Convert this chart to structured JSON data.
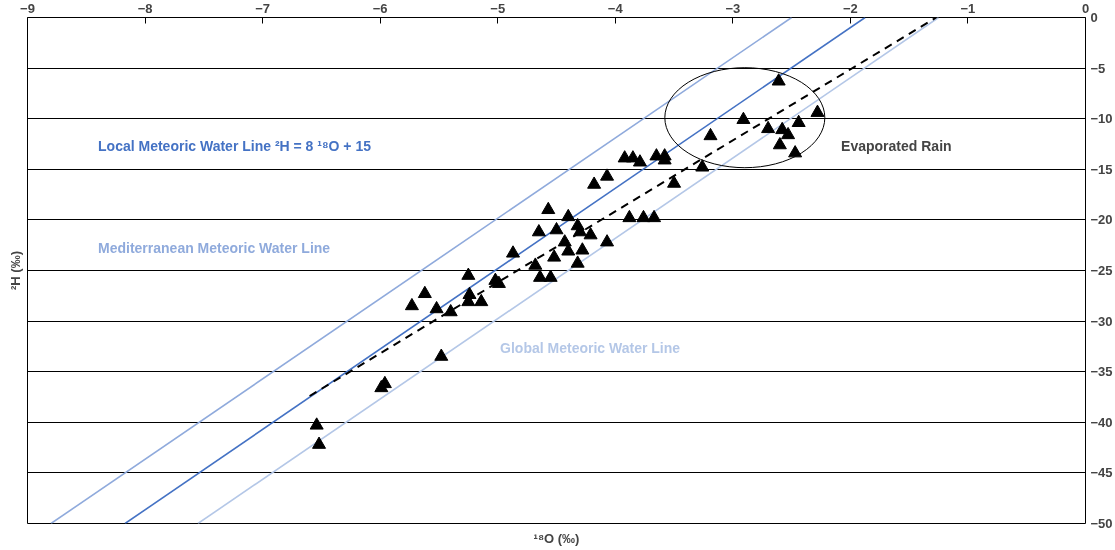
{
  "chart_data": {
    "type": "scatter",
    "xlabel": "¹⁸O (‰)",
    "ylabel": "²H (‰)",
    "xlim": [
      -9,
      0
    ],
    "xticks": [
      -9,
      -8,
      -7,
      -6,
      -5,
      -4,
      -3,
      -2,
      -1,
      0
    ],
    "ylim": [
      -50,
      0
    ],
    "yticks": [
      -50,
      -45,
      -40,
      -35,
      -30,
      -25,
      -20,
      -15,
      -10,
      -5,
      0
    ],
    "grid": "y",
    "legend": false,
    "annotations": [
      "Evaporated Rain"
    ],
    "series": [
      {
        "type": "line",
        "name": "Local Meteoric Water Line    ²H = 8  ¹⁸O + 15",
        "color": "#4472c4",
        "line_style": "solid",
        "x": [
          -8.17,
          -1.875
        ],
        "values": [
          -50,
          0
        ]
      },
      {
        "type": "line",
        "name": "Mediterranean Meteoric Water Line",
        "color": "#8faadc",
        "line_style": "solid",
        "x": [
          -8.8,
          -2.5
        ],
        "values": [
          -50,
          0
        ]
      },
      {
        "type": "line",
        "name": "Global Meteoric Water Line",
        "color": "#b4c7e7",
        "line_style": "solid",
        "x": [
          -7.55,
          -1.25
        ],
        "values": [
          -50,
          0
        ]
      },
      {
        "type": "line",
        "color": "#000000",
        "line_style": "dashed",
        "x": [
          -6.6,
          -1.27
        ],
        "values": [
          -37.4,
          0
        ]
      },
      {
        "color": "#000000",
        "marker": "triangle",
        "x": [
          -6.54,
          -6.52,
          -5.99,
          -5.96,
          -5.48,
          -5.73,
          -5.62,
          -5.52,
          -5.4,
          -5.25,
          -5.24,
          -5.25,
          -5.14,
          -5.02,
          -4.99,
          -4.87,
          -4.68,
          -4.64,
          -4.55,
          -4.52,
          -4.65,
          -4.57,
          -4.5,
          -4.43,
          -4.4,
          -4.4,
          -4.32,
          -4.3,
          -4.28,
          -4.32,
          -4.21,
          -4.07,
          -3.88,
          -3.76,
          -3.67,
          -4.18,
          -4.07,
          -3.92,
          -3.85,
          -3.79,
          -3.65,
          -3.58,
          -3.58,
          -3.5,
          -3.26,
          -2.61,
          -3.19,
          -2.91,
          -2.7,
          -2.58,
          -2.53,
          -2.6,
          -2.47,
          -2.44,
          -2.28
        ],
        "values": [
          -40.3,
          -42.2,
          -36.6,
          -36.2,
          -33.5,
          -28.5,
          -27.3,
          -28.8,
          -29.1,
          -25.5,
          -27.4,
          -28.1,
          -28.1,
          -26.0,
          -26.3,
          -23.3,
          -24.5,
          -25.7,
          -25.7,
          -23.7,
          -21.2,
          -19.0,
          -21.0,
          -22.2,
          -19.7,
          -23.1,
          -20.6,
          -21.2,
          -23.0,
          -24.3,
          -21.5,
          -22.2,
          -19.8,
          -19.8,
          -19.8,
          -16.5,
          -15.7,
          -13.9,
          -13.9,
          -14.3,
          -13.7,
          -13.7,
          -14.1,
          -16.4,
          -14.8,
          -6.3,
          -11.7,
          -10.1,
          -11.0,
          -11.1,
          -11.6,
          -12.6,
          -13.4,
          -10.4,
          -9.4
        ]
      }
    ]
  }
}
